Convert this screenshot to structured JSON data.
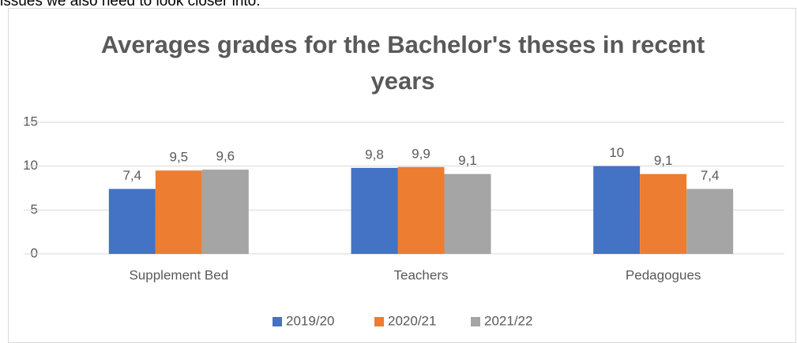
{
  "document_text": "issues we also need to look closer into.",
  "chart_data": {
    "type": "bar",
    "title": "Averages grades for the Bachelor's theses in recent years",
    "categories": [
      "Supplement Bed",
      "Teachers",
      "Pedagogues"
    ],
    "series": [
      {
        "name": "2019/20",
        "color": "#4472c4",
        "values": [
          7.4,
          9.8,
          10
        ],
        "value_labels": [
          "7,4",
          "9,8",
          "10"
        ]
      },
      {
        "name": "2020/21",
        "color": "#ed7d31",
        "values": [
          9.5,
          9.9,
          9.1
        ],
        "value_labels": [
          "9,5",
          "9,9",
          "9,1"
        ]
      },
      {
        "name": "2021/22",
        "color": "#a5a5a5",
        "values": [
          9.6,
          9.1,
          7.4
        ],
        "value_labels": [
          "9,6",
          "9,1",
          "7,4"
        ]
      }
    ],
    "ylim": [
      0,
      15
    ],
    "yticks": [
      0,
      5,
      10,
      15
    ],
    "grid": true,
    "legend": "bottom"
  }
}
